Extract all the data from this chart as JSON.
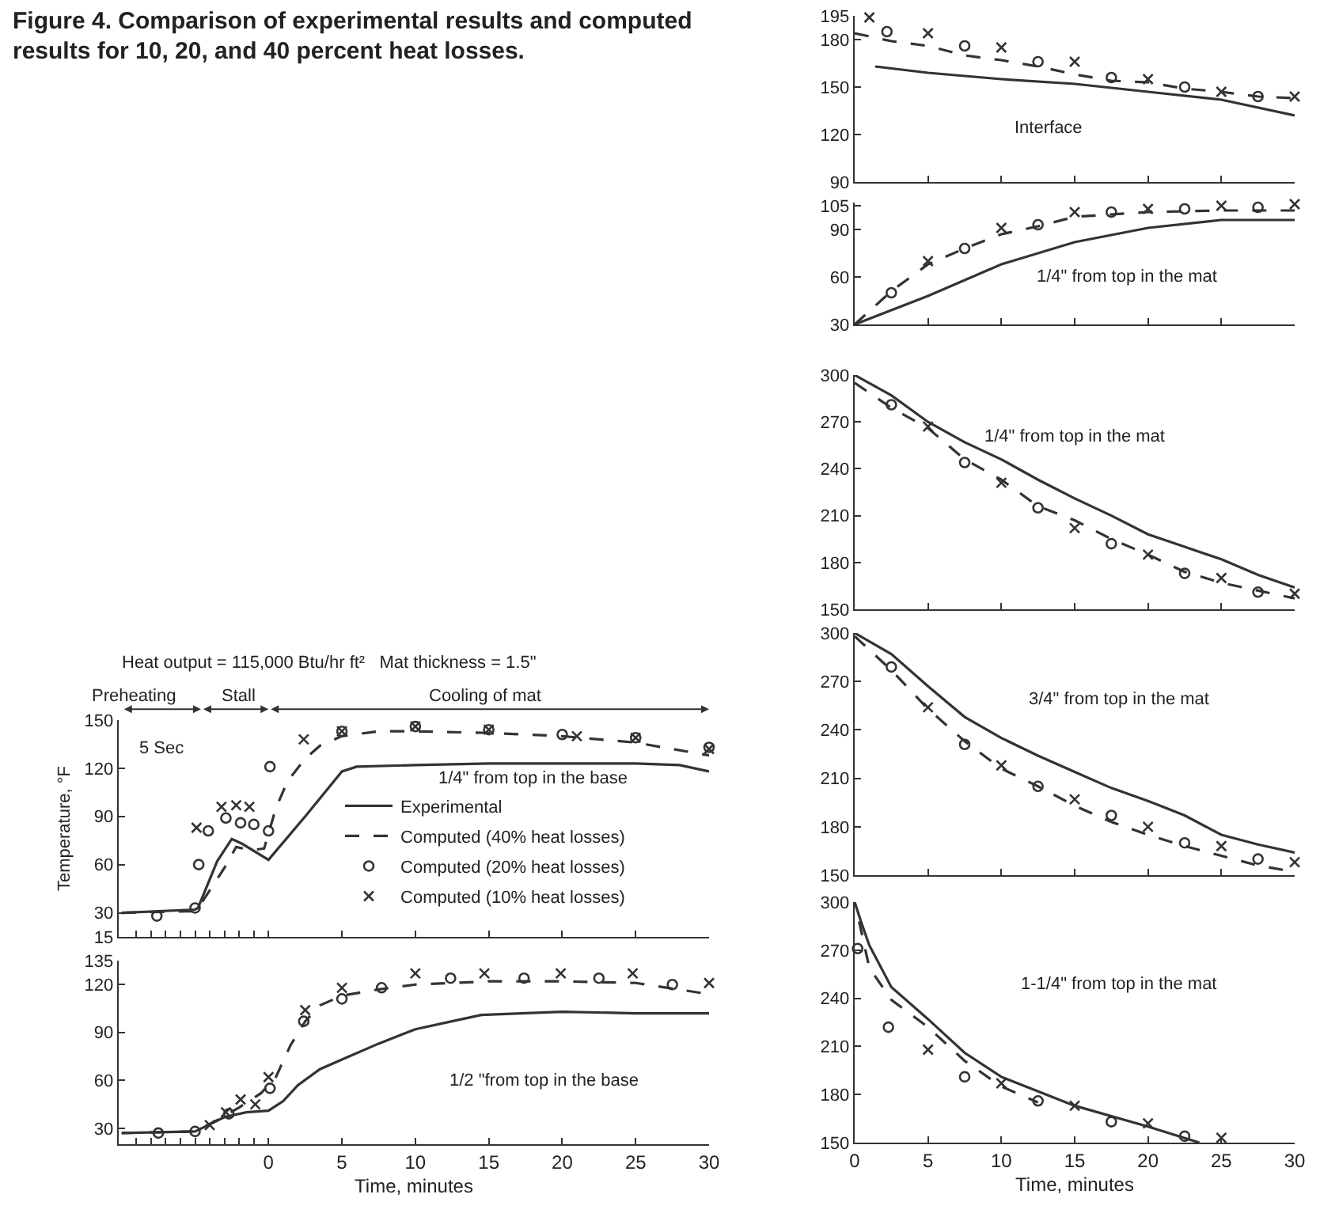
{
  "chart_data": [
    {
      "type": "line",
      "title": "Figure 4.  Comparison of experimental results and computed results for 10, 20, and 40 percent heat losses.",
      "ylabel": "Temperature, °F",
      "annotations": [
        "1/4\" from top in the base",
        "Heat output = 115,000 Btu/hr ft²   Mat thickness = 1.5\"",
        "5 Sec",
        "Preheating",
        "Stall",
        "Cooling of mat"
      ],
      "xlim": [
        -10.2,
        30
      ],
      "xticks": [
        {
          "value": -9,
          "label": null
        },
        {
          "value": -8,
          "label": null
        },
        {
          "value": -7,
          "label": null
        },
        {
          "value": -6,
          "label": null
        },
        {
          "value": -5,
          "label": null
        },
        {
          "value": -4,
          "label": null
        },
        {
          "value": -3,
          "label": null
        },
        {
          "value": -2,
          "label": null
        },
        {
          "value": -1,
          "label": null
        },
        0,
        5,
        10,
        15,
        20,
        25,
        30
      ],
      "ylim": [
        15,
        150
      ],
      "yticks": [
        15,
        30,
        60,
        90,
        120,
        150
      ],
      "tick_labels": "y",
      "legend": "bottom right",
      "series": [
        {
          "name": "Experimental",
          "type": "line",
          "line_style": "solid",
          "color": "#333333",
          "x": [
            -10,
            -5,
            -4.8,
            -3.5,
            -2.5,
            -1.8,
            0,
            2.5,
            5,
            6,
            10,
            15,
            20,
            25,
            28,
            30
          ],
          "values": [
            30,
            32,
            33,
            62,
            76,
            73,
            63,
            90,
            118,
            121,
            122,
            123,
            123,
            123,
            122,
            118
          ]
        },
        {
          "name": "Computed (40% heat losses)",
          "type": "line",
          "line_style": "dashed",
          "color": "#333333",
          "x": [
            -10,
            -5,
            -4.5,
            -3,
            -2.2,
            -1.2,
            -0.3,
            0.5,
            1.3,
            2.5,
            3.5,
            5,
            7.5,
            10,
            15,
            20,
            25,
            30
          ],
          "values": [
            30,
            31,
            37,
            58,
            71,
            69,
            70,
            95,
            112,
            126,
            134,
            140,
            143,
            143,
            142,
            140,
            136,
            128
          ]
        },
        {
          "name": "Computed (20% heat losses)",
          "type": "scatter",
          "marker": "circle",
          "color": "#333333",
          "x": [
            -7.6,
            -5,
            -4.75,
            -4.1,
            -2.9,
            -1.9,
            -1,
            0,
            0.1,
            5,
            10,
            15,
            20,
            25,
            30
          ],
          "values": [
            28,
            33,
            60,
            81,
            89,
            86,
            85,
            81,
            121,
            143,
            146,
            144,
            141,
            139,
            133
          ]
        },
        {
          "name": "Computed (10% heat losses)",
          "type": "scatter",
          "marker": "cross",
          "color": "#333333",
          "x": [
            -4.9,
            -3.2,
            -2.2,
            -1.3,
            2.4,
            5,
            10,
            15,
            21,
            25,
            30
          ],
          "values": [
            83,
            96,
            97,
            96,
            138,
            143,
            146,
            144,
            140,
            139,
            132
          ]
        }
      ]
    },
    {
      "type": "line",
      "xlabel": "Time, minutes",
      "annotations": [
        "1/2 \"from top in the base"
      ],
      "xlim": [
        -10.2,
        30
      ],
      "xticks": [
        {
          "value": -9,
          "label": null
        },
        {
          "value": -8,
          "label": null
        },
        {
          "value": -7,
          "label": null
        },
        {
          "value": -6,
          "label": null
        },
        {
          "value": -5,
          "label": null
        },
        {
          "value": -4,
          "label": null
        },
        {
          "value": -3,
          "label": null
        },
        {
          "value": -2,
          "label": null
        },
        {
          "value": -1,
          "label": null
        },
        0,
        5,
        10,
        15,
        20,
        25,
        30
      ],
      "ylim": [
        20,
        135
      ],
      "yticks": [
        30,
        60,
        90,
        120,
        135
      ],
      "series": [
        {
          "type": "line",
          "line_style": "solid",
          "color": "#333333",
          "x": [
            -10,
            -5,
            -3,
            -1.5,
            0,
            1,
            2,
            3.5,
            5,
            7.5,
            10,
            12.5,
            14.5,
            20,
            25,
            30
          ],
          "values": [
            27,
            28,
            37,
            40,
            41,
            47,
            57,
            67,
            73,
            83,
            92,
            97,
            101,
            103,
            102,
            102
          ]
        },
        {
          "type": "line",
          "line_style": "dashed",
          "color": "#333333",
          "x": [
            -10,
            -5,
            -3.5,
            -2,
            -0.5,
            0.5,
            1.5,
            2.5,
            3.5,
            5,
            7.5,
            10,
            15,
            20,
            25,
            30
          ],
          "values": [
            27,
            28,
            35,
            43,
            52,
            62,
            82,
            97,
            107,
            113,
            117,
            120,
            122,
            122,
            121,
            114
          ]
        },
        {
          "type": "scatter",
          "marker": "circle",
          "color": "#333333",
          "x": [
            -7.5,
            -5,
            -2.7,
            0.1,
            2.4,
            5,
            7.7,
            12.4,
            17.4,
            22.5,
            27.5
          ],
          "values": [
            27,
            28,
            39,
            55,
            97,
            111,
            118,
            124,
            124,
            124,
            120
          ]
        },
        {
          "type": "scatter",
          "marker": "cross",
          "color": "#333333",
          "x": [
            -4,
            -2.9,
            -1.9,
            -0.9,
            0,
            2.5,
            5,
            10,
            14.7,
            19.9,
            24.8,
            30
          ],
          "values": [
            32,
            40,
            48,
            45,
            62,
            104,
            118,
            127,
            127,
            127,
            127,
            121
          ]
        }
      ]
    },
    {
      "type": "line",
      "annotations": [
        "Interface"
      ],
      "xlim": [
        0,
        30
      ],
      "xticks": [
        0,
        5,
        10,
        15,
        20,
        25,
        30
      ],
      "ylim": [
        90,
        195
      ],
      "yticks": [
        90,
        120,
        150,
        180,
        195
      ],
      "tick_labels": "y",
      "series": [
        {
          "type": "line",
          "line_style": "solid",
          "color": "#333333",
          "x": [
            1.4,
            5,
            10,
            15,
            20,
            25,
            30
          ],
          "values": [
            163,
            159,
            155,
            152,
            147,
            142,
            132
          ]
        },
        {
          "type": "line",
          "line_style": "dashed",
          "color": "#333333",
          "x": [
            0,
            2.5,
            5,
            7.5,
            10,
            12.5,
            15,
            17.5,
            20,
            22.5,
            25,
            27.5,
            30
          ],
          "values": [
            184,
            179,
            176,
            170,
            167,
            163,
            158,
            154,
            153,
            149,
            147,
            144,
            143
          ]
        },
        {
          "type": "scatter",
          "marker": "circle",
          "color": "#333333",
          "x": [
            2.2,
            7.5,
            12.5,
            17.5,
            22.5,
            27.5
          ],
          "values": [
            185,
            176,
            166,
            156,
            150,
            144
          ]
        },
        {
          "type": "scatter",
          "marker": "cross",
          "color": "#333333",
          "x": [
            1,
            5,
            10,
            15,
            20,
            25,
            30
          ],
          "values": [
            194,
            184,
            175,
            166,
            155,
            147,
            144
          ]
        }
      ]
    },
    {
      "type": "line",
      "annotations": [
        "1/4\" from top in the mat"
      ],
      "xlim": [
        0,
        30
      ],
      "xticks": [
        0,
        5,
        10,
        15,
        20,
        25,
        30
      ],
      "ylim": [
        30,
        107
      ],
      "yticks": [
        30,
        60,
        90,
        105
      ],
      "tick_labels": "y",
      "series": [
        {
          "type": "line",
          "line_style": "solid",
          "color": "#333333",
          "x": [
            0,
            5,
            10,
            15,
            20,
            25,
            27.5,
            30
          ],
          "values": [
            30,
            48,
            68,
            82,
            91,
            96,
            96,
            96
          ]
        },
        {
          "type": "line",
          "line_style": "dashed",
          "color": "#333333",
          "x": [
            0,
            2.5,
            5,
            7.5,
            10,
            12.5,
            15,
            20,
            25,
            30
          ],
          "values": [
            30,
            51,
            68,
            78,
            87,
            92,
            98,
            101,
            102,
            102
          ]
        },
        {
          "type": "scatter",
          "marker": "circle",
          "color": "#333333",
          "x": [
            2.5,
            7.5,
            12.5,
            17.5,
            22.5,
            27.5
          ],
          "values": [
            50,
            78,
            93,
            101,
            103,
            104
          ]
        },
        {
          "type": "scatter",
          "marker": "cross",
          "color": "#333333",
          "x": [
            5,
            10,
            15,
            20,
            25,
            30
          ],
          "values": [
            70,
            91,
            101,
            103,
            105,
            106
          ]
        }
      ]
    },
    {
      "type": "line",
      "annotations": [
        "1/4\" from top in the mat"
      ],
      "xlim": [
        0,
        30
      ],
      "xticks": [
        0,
        5,
        10,
        15,
        20,
        25,
        30
      ],
      "ylim": [
        150,
        300
      ],
      "yticks": [
        150,
        180,
        210,
        240,
        270,
        300
      ],
      "tick_labels": "y",
      "series": [
        {
          "type": "line",
          "line_style": "solid",
          "color": "#333333",
          "x": [
            0,
            2.5,
            5,
            7.5,
            10,
            12.5,
            15,
            17.5,
            20,
            22.5,
            25,
            27.5,
            30
          ],
          "values": [
            300,
            287,
            270,
            257,
            246,
            233,
            221,
            210,
            198,
            190,
            182,
            172,
            164
          ]
        },
        {
          "type": "line",
          "line_style": "dashed",
          "color": "#333333",
          "x": [
            0,
            2.5,
            5,
            7.5,
            10,
            12.5,
            15,
            17.5,
            20,
            22.5,
            25,
            27.5,
            30
          ],
          "values": [
            295,
            279,
            266,
            246,
            233,
            216,
            207,
            195,
            185,
            174,
            167,
            162,
            157
          ]
        },
        {
          "type": "scatter",
          "marker": "circle",
          "color": "#333333",
          "x": [
            2.5,
            7.5,
            12.5,
            17.5,
            22.5,
            27.5
          ],
          "values": [
            281,
            244,
            215,
            192,
            173,
            161
          ]
        },
        {
          "type": "scatter",
          "marker": "cross",
          "color": "#333333",
          "x": [
            5,
            10,
            15,
            20,
            25,
            30
          ],
          "values": [
            267,
            231,
            202,
            185,
            170,
            160
          ]
        }
      ]
    },
    {
      "type": "line",
      "annotations": [
        "3/4\" from top in the mat"
      ],
      "xlim": [
        0,
        30
      ],
      "xticks": [
        0,
        5,
        10,
        15,
        20,
        25,
        30
      ],
      "ylim": [
        150,
        300
      ],
      "yticks": [
        150,
        180,
        210,
        240,
        270,
        300
      ],
      "tick_labels": "y",
      "series": [
        {
          "type": "line",
          "line_style": "solid",
          "color": "#333333",
          "x": [
            0,
            2.5,
            5,
            7.5,
            10,
            12.5,
            15,
            17.5,
            20,
            22.5,
            25,
            27.5,
            30
          ],
          "values": [
            300,
            287,
            267,
            248,
            235,
            224,
            214,
            204,
            196,
            187,
            175,
            169,
            164
          ]
        },
        {
          "type": "line",
          "line_style": "dashed",
          "color": "#333333",
          "x": [
            0,
            2.5,
            5,
            7.5,
            10,
            12.5,
            15,
            17.5,
            20,
            22.5,
            25,
            27.5,
            30
          ],
          "values": [
            298,
            277,
            253,
            233,
            216,
            205,
            193,
            183,
            175,
            168,
            162,
            156,
            152
          ]
        },
        {
          "type": "scatter",
          "marker": "circle",
          "color": "#333333",
          "x": [
            2.5,
            7.5,
            12.5,
            17.5,
            22.5,
            27.5
          ],
          "values": [
            279,
            231,
            205,
            187,
            170,
            160
          ]
        },
        {
          "type": "scatter",
          "marker": "cross",
          "color": "#333333",
          "x": [
            5,
            10,
            15,
            20,
            25,
            30
          ],
          "values": [
            254,
            218,
            197,
            180,
            168,
            158
          ]
        }
      ]
    },
    {
      "type": "line",
      "xlabel": "Time, minutes",
      "annotations": [
        "1-1/4\" from top in the mat"
      ],
      "xlim": [
        0,
        30
      ],
      "xticks": [
        0,
        5,
        10,
        15,
        20,
        25,
        30
      ],
      "ylim": [
        150,
        300
      ],
      "yticks": [
        150,
        180,
        210,
        240,
        270,
        300
      ],
      "series": [
        {
          "type": "line",
          "line_style": "solid",
          "color": "#333333",
          "x": [
            0,
            0.5,
            1,
            2.5,
            5,
            7.5,
            10,
            15,
            20,
            23.5
          ],
          "values": [
            300,
            286,
            273,
            247,
            227,
            206,
            191,
            173,
            160,
            150
          ]
        },
        {
          "type": "line",
          "line_style": "dashed",
          "color": "#333333",
          "x": [
            0.3,
            1,
            2.5,
            5,
            7.5,
            10,
            12.5
          ],
          "values": [
            288,
            259,
            239,
            222,
            201,
            185,
            175
          ]
        },
        {
          "type": "scatter",
          "marker": "circle",
          "color": "#333333",
          "x": [
            0.2,
            2.3,
            7.5,
            12.5,
            17.5,
            22.5
          ],
          "values": [
            271,
            222,
            191,
            176,
            163,
            154
          ]
        },
        {
          "type": "scatter",
          "marker": "cross",
          "color": "#333333",
          "x": [
            5,
            10,
            15,
            20,
            25
          ],
          "values": [
            208,
            187,
            173,
            162,
            153
          ]
        }
      ]
    }
  ]
}
